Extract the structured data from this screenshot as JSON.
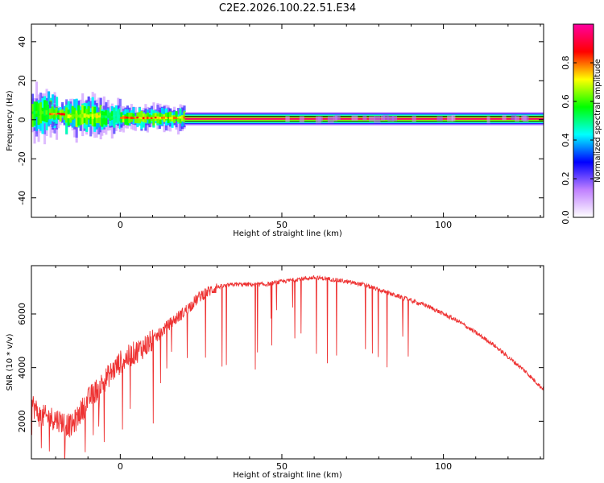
{
  "figure_title": "C2E2.2026.100.22.51.E34",
  "chart_data": [
    {
      "type": "heatmap",
      "title": "C2E2.2026.100.22.51.E34",
      "xlabel": "Height of straight line (km)",
      "ylabel": "Frequency (Hz)",
      "xlim": [
        -27.5,
        131
      ],
      "ylim": [
        -50,
        49
      ],
      "xticks": [
        0,
        50,
        100
      ],
      "xtick_labels": [
        "0",
        "50",
        "100"
      ],
      "yticks": [
        -40,
        -20,
        0,
        20,
        40
      ],
      "ytick_labels": [
        "-40",
        "-20",
        "0",
        "20",
        "40"
      ],
      "colorbar": {
        "label": "Normalized spectral amplitude",
        "range": [
          0,
          1
        ],
        "ticks": [
          0.0,
          0.2,
          0.4,
          0.6,
          0.8
        ],
        "tick_labels": [
          "0.0",
          "0.2",
          "0.4",
          "0.6",
          "0.8"
        ],
        "colormap": [
          "#ffffff",
          "#c080ff",
          "#0000ff",
          "#00ffff",
          "#00ff00",
          "#ffff00",
          "#ff0000",
          "#ff00a0"
        ]
      },
      "ridge_segments": [
        {
          "x0": -27.5,
          "x1": -20,
          "freq": 3.5,
          "width_hz": 6,
          "amplitude": 0.6
        },
        {
          "x0": -22,
          "x1": -17,
          "freq": 3,
          "width_hz": 3,
          "amplitude": 0.85
        },
        {
          "x0": -17,
          "x1": -6,
          "freq": 2,
          "width_hz": 5,
          "amplitude": 0.7
        },
        {
          "x0": -6,
          "x1": 0,
          "freq": 1.5,
          "width_hz": 4,
          "amplitude": 0.55
        },
        {
          "x0": 0,
          "x1": 12,
          "freq": 1,
          "width_hz": 3,
          "amplitude": 0.85
        },
        {
          "x0": 12,
          "x1": 20,
          "freq": 1,
          "width_hz": 3,
          "amplitude": 0.8
        },
        {
          "x0": 20,
          "x1": 131,
          "freq": 0.5,
          "width_hz": 2,
          "amplitude": 0.95
        }
      ]
    },
    {
      "type": "line",
      "xlabel": "Height of straight line (km)",
      "ylabel": "SNR (10 * v/v)",
      "xlim": [
        -27.5,
        131
      ],
      "ylim": [
        600,
        7800
      ],
      "xticks": [
        0,
        50,
        100
      ],
      "xtick_labels": [
        "0",
        "50",
        "100"
      ],
      "yticks": [
        2000,
        4000,
        6000
      ],
      "ytick_labels": [
        "2000",
        "4000",
        "6000"
      ],
      "series": [
        {
          "name": "SNR",
          "color": "#ee3333",
          "x": [
            -27.5,
            -25,
            -20,
            -15,
            -10,
            -5,
            0,
            5,
            10,
            15,
            20,
            25,
            30,
            35,
            40,
            45,
            50,
            55,
            60,
            65,
            70,
            75,
            80,
            85,
            90,
            95,
            100,
            105,
            110,
            115,
            120,
            125,
            130,
            131
          ],
          "y": [
            2700,
            2200,
            2100,
            1800,
            2800,
            3500,
            4200,
            4600,
            5000,
            5600,
            6100,
            6700,
            7000,
            7100,
            7100,
            7100,
            7200,
            7300,
            7350,
            7300,
            7200,
            7100,
            6900,
            6700,
            6500,
            6300,
            6000,
            5700,
            5300,
            4900,
            4400,
            3900,
            3300,
            3200
          ]
        }
      ]
    }
  ]
}
